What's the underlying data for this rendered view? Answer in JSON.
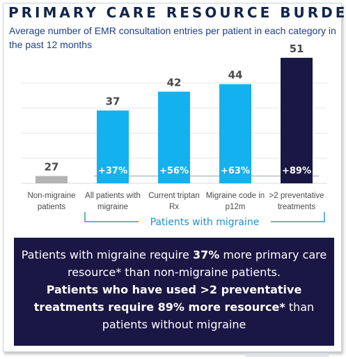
{
  "title": "PRIMARY CARE RESOURCE BURDEN",
  "subtitle": "Average number of EMR consultation entries per patient in each category in the past 12 months",
  "chart_data": {
    "type": "bar",
    "categories": [
      "Non-migraine patients",
      "All patients with migraine",
      "Current triptan Rx",
      "Migraine code in p12m",
      ">2 preventative treatments"
    ],
    "category_lines": [
      [
        "Non-migraine",
        "patients"
      ],
      [
        "All patients with",
        "migraine"
      ],
      [
        "Current triptan",
        "Rx"
      ],
      [
        "Migraine code in",
        "p12m"
      ],
      [
        ">2 preventative",
        "treatments"
      ]
    ],
    "values": [
      27,
      37,
      42,
      44,
      51
    ],
    "value_labels": [
      "27",
      "37",
      "42",
      "44",
      "51"
    ],
    "increase_labels": [
      "",
      "+37%",
      "+56%",
      "+63%",
      "+89%"
    ],
    "colors": [
      "#b3b3b3",
      "#14b1ef",
      "#14b1ef",
      "#14b1ef",
      "#1a1744"
    ],
    "ylim": [
      0,
      54
    ],
    "grid": true,
    "bracket_label": "Patients with migraine",
    "baseline_reference_value": 27
  },
  "summary": {
    "line1_pre": "Patients with migraine require ",
    "line1_bold": "37%",
    "line1_post": " more primary care resource* than non-migraine patients.",
    "line2_pre": "Patients who have used >2 preventative treatments require 89% more resource*",
    "line2_post": " than patients without migraine"
  },
  "colors": {
    "title": "#12254a",
    "subtitle": "#1f3e86",
    "accent": "#14b1ef",
    "dark": "#1a1744",
    "bracket": "#2d9ad0"
  }
}
